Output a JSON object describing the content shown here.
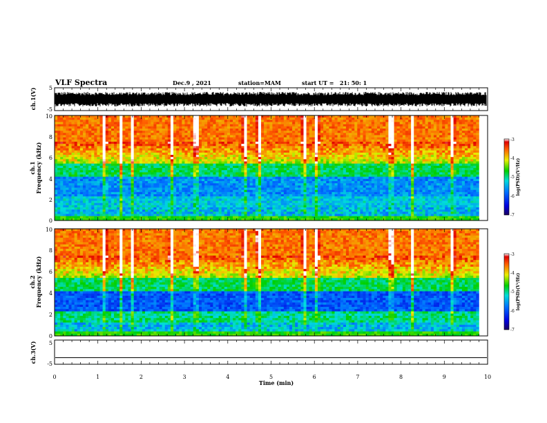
{
  "header": {
    "title": "VLF Spectra",
    "date": "Dec.9 , 2021",
    "station": "station=MAM",
    "start": "start UT =   21: 50: 1"
  },
  "chart_data": [
    {
      "type": "line",
      "name": "ch1-waveform",
      "ylabel": "ch.1(V)",
      "ylim": [
        -5,
        5
      ],
      "yticks": [
        "5",
        "-5"
      ],
      "xlim": [
        0,
        10
      ],
      "series": [
        {
          "fill_range_volts": [
            -3.2,
            3.2
          ]
        }
      ],
      "color": "#000000"
    },
    {
      "type": "heatmap",
      "name": "ch1-spectrogram",
      "ylabel_line1": "ch.1",
      "ylabel_line2": "Frequency (kHz)",
      "ylim": [
        0,
        10
      ],
      "yticks": [
        "0",
        "2",
        "4",
        "6",
        "8",
        "10"
      ],
      "xlim": [
        0,
        9.8
      ],
      "colorbar": {
        "label": "log(PSD)(V²/Hz)",
        "range": [
          -7,
          -3
        ],
        "ticks": [
          "-3",
          "-4",
          "-5",
          "-6",
          "-7"
        ]
      }
    },
    {
      "type": "heatmap",
      "name": "ch2-spectrogram",
      "ylabel_line1": "ch.2",
      "ylabel_line2": "Frequency (kHz)",
      "ylim": [
        0,
        10
      ],
      "yticks": [
        "0",
        "2",
        "4",
        "6",
        "8",
        "10"
      ],
      "xlim": [
        0,
        9.8
      ],
      "colorbar": {
        "label": "log(PSD)(V²/Hz)",
        "range": [
          -7,
          -3
        ],
        "ticks": [
          "-3",
          "-4",
          "-5",
          "-6",
          "-7"
        ]
      }
    },
    {
      "type": "line",
      "name": "ch3-waveform",
      "ylabel": "ch.3(V)",
      "ylim": [
        -5,
        5
      ],
      "yticks": [
        "5",
        "-5"
      ],
      "xlim": [
        0,
        10
      ],
      "series": [
        {
          "x": [
            0,
            10
          ],
          "y": [
            -2.3,
            -2.3
          ]
        }
      ]
    }
  ],
  "xaxis": {
    "label": "Time (min)",
    "range": [
      0,
      10
    ],
    "ticks": [
      "0",
      "1",
      "2",
      "3",
      "4",
      "5",
      "6",
      "7",
      "8",
      "9",
      "10"
    ]
  }
}
